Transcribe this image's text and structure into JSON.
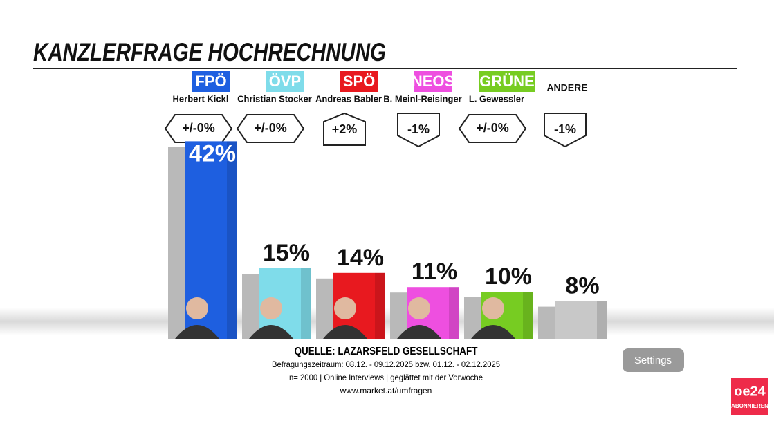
{
  "chart_data": {
    "type": "bar",
    "title": "KANZLERFRAGE HOCHRECHNUNG",
    "categories": [
      "FPÖ",
      "ÖVP",
      "SPÖ",
      "NEOS",
      "GRÜNE",
      "ANDERE"
    ],
    "candidates": [
      "Herbert Kickl",
      "Christian Stocker",
      "Andreas Babler",
      "B. Meinl-Reisinger",
      "L. Gewessler",
      null
    ],
    "changes": [
      "+/-0%",
      "+/-0%",
      "+2%",
      "-1%",
      "+/-0%",
      "-1%"
    ],
    "values": [
      42,
      15,
      14,
      11,
      10,
      8
    ],
    "value_labels": [
      "42%",
      "15%",
      "14%",
      "11%",
      "10%",
      "8%"
    ],
    "colors": [
      "#1e5fe0",
      "#7fdcea",
      "#e8191f",
      "#ee4fe0",
      "#77cc22",
      "#c8c8c8"
    ],
    "source": "QUELLE: LAZARSFELD GESELLSCHAFT",
    "notes": [
      "Befragungszeitraum:  08.12. - 09.12.2025  bzw.  01.12. - 02.12.2025",
      "n= 2000 | Online Interviews | geglättet mit der Vorwoche",
      "www.market.at/umfragen"
    ]
  },
  "ui": {
    "settings_button": "Settings",
    "logo": "oe24",
    "logo_sub": "ABONNIEREN"
  }
}
